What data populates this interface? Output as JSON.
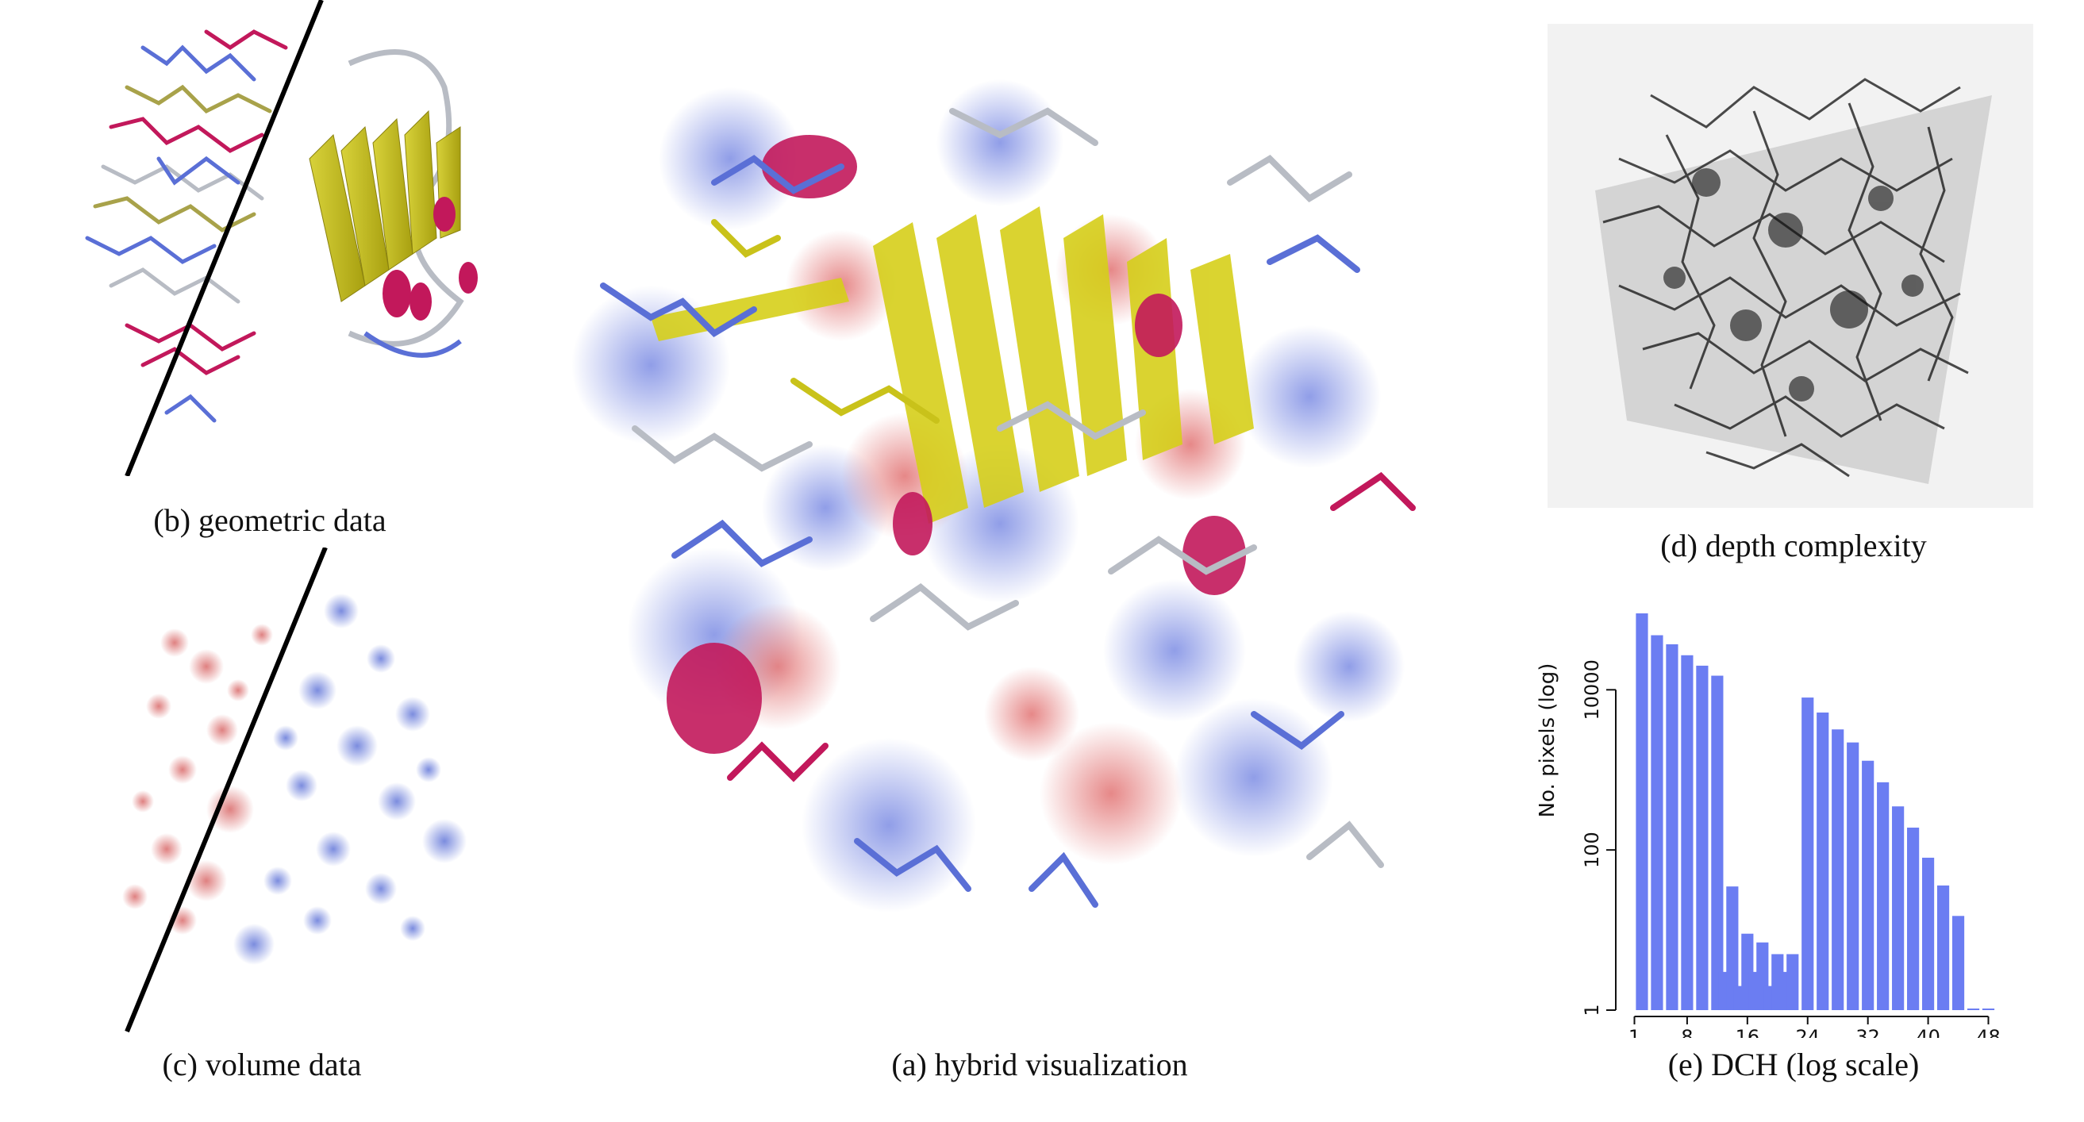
{
  "figure": {
    "captions": {
      "geometric": "(b) geometric data",
      "volume": "(c) volume data",
      "hybrid": "(a) hybrid visualization",
      "depth": "(d) depth complexity",
      "dch": "(e) DCH (log scale)"
    },
    "colors": {
      "blue": "#5a6fd6",
      "magenta": "#c2185b",
      "yellow": "#c9c21a",
      "grey": "#b8bcc4",
      "red": "#d96a6a",
      "bar": "#6b7df2"
    }
  },
  "chart_data": {
    "type": "bar",
    "ylabel": "No. pixels (log)",
    "xlabel": "",
    "yscale": "log",
    "ylim": [
      1,
      200000
    ],
    "xlim": [
      0,
      49
    ],
    "xticks": [
      "1",
      "8",
      "16",
      "24",
      "32",
      "40",
      "48"
    ],
    "yticks": [
      "1",
      "100",
      "10000"
    ],
    "x": [
      2,
      4,
      6,
      8,
      10,
      12,
      13,
      14,
      15,
      16,
      17,
      18,
      19,
      20,
      21,
      22,
      24,
      26,
      28,
      30,
      32,
      34,
      36,
      38,
      40,
      42,
      44,
      46,
      48
    ],
    "values": [
      90000,
      48000,
      37000,
      27000,
      20000,
      15000,
      3,
      35,
      2,
      9,
      3,
      7,
      2,
      5,
      3,
      5,
      8000,
      5200,
      3200,
      2200,
      1300,
      700,
      350,
      190,
      80,
      36,
      15,
      1,
      1
    ]
  }
}
